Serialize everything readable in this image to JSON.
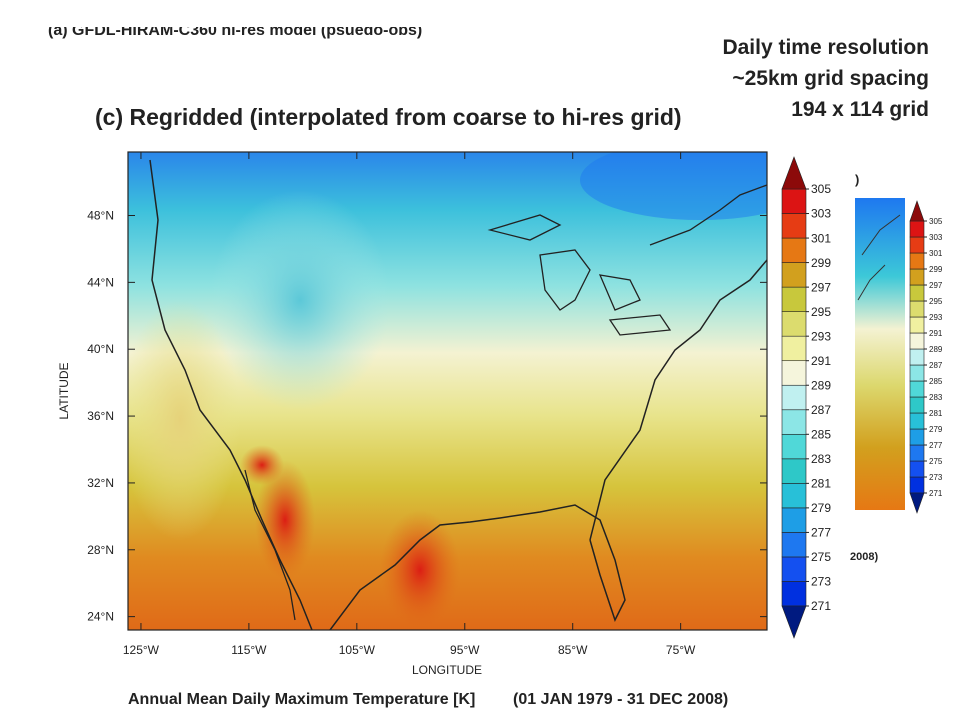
{
  "panel_a": {
    "title": "(a)  GFDL-HIRAM-C360 hi-res model (psuedo-obs)",
    "title_tail": ")",
    "footer_tail": "2008)",
    "colorbar": {
      "levels": [
        271,
        273,
        275,
        277,
        279,
        281,
        283,
        285,
        287,
        289,
        291,
        293,
        295,
        297,
        299,
        301,
        303,
        305
      ]
    }
  },
  "notes": [
    "Daily time resolution",
    "~25km grid spacing",
    "194 x 114 grid"
  ],
  "panel_c": {
    "title": "(c)  Regridded (interpolated from coarse to hi-res grid)",
    "xlabel": "LONGITUDE",
    "ylabel": "LATITUDE",
    "xlim": [
      -126.2,
      -67
    ],
    "ylim": [
      23.2,
      51.8
    ],
    "xticks": [
      {
        "value": -125,
        "label": "125°W"
      },
      {
        "value": -115,
        "label": "115°W"
      },
      {
        "value": -105,
        "label": "105°W"
      },
      {
        "value": -95,
        "label": "95°W"
      },
      {
        "value": -85,
        "label": "85°W"
      },
      {
        "value": -75,
        "label": "75°W"
      }
    ],
    "yticks": [
      {
        "value": 24,
        "label": "24°N"
      },
      {
        "value": 28,
        "label": "28°N"
      },
      {
        "value": 32,
        "label": "32°N"
      },
      {
        "value": 36,
        "label": "36°N"
      },
      {
        "value": 40,
        "label": "40°N"
      },
      {
        "value": 44,
        "label": "44°N"
      },
      {
        "value": 48,
        "label": "48°N"
      }
    ],
    "footer_label": "Annual Mean Daily Maximum Temperature [K]",
    "footer_period": "(01 JAN 1979 - 31 DEC 2008)",
    "colorbar": {
      "levels": [
        271,
        273,
        275,
        277,
        279,
        281,
        283,
        285,
        287,
        289,
        291,
        293,
        295,
        297,
        299,
        301,
        303,
        305
      ],
      "under_color": "#001a80",
      "over_color": "#8c0a0a",
      "colors": [
        "#0030e0",
        "#1450f0",
        "#1e78f0",
        "#1e9ee6",
        "#28c0d8",
        "#2ec8c8",
        "#50d8d8",
        "#8ce6e6",
        "#c0f0f0",
        "#f5f5dc",
        "#f0f0a0",
        "#dcdc6e",
        "#c8c83c",
        "#d2a01e",
        "#e67814",
        "#e63c14",
        "#dc1414"
      ]
    }
  }
}
